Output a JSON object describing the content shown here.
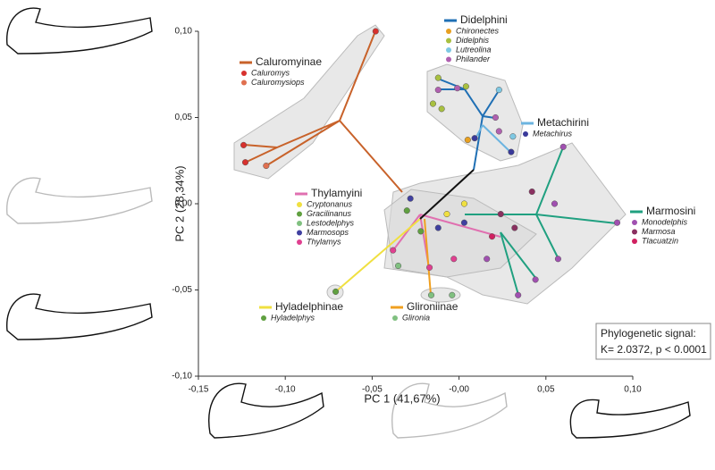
{
  "chart_data": {
    "type": "scatter",
    "x_label": "PC 1 (41,67%)",
    "y_label": "PC 2 (28,34%)",
    "xlim": [
      -0.15,
      0.1
    ],
    "ylim": [
      -0.1,
      0.1
    ],
    "xticks": [
      {
        "value": -0.15,
        "label": "-0,15"
      },
      {
        "value": -0.1,
        "label": "-0,10"
      },
      {
        "value": -0.05,
        "label": "-0,05"
      },
      {
        "value": 0,
        "label": "-0,00"
      },
      {
        "value": 0.05,
        "label": "0,05"
      },
      {
        "value": 0.1,
        "label": "0,10"
      }
    ],
    "yticks": [
      {
        "value": 0.1,
        "label": "0,10"
      },
      {
        "value": 0.05,
        "label": "0,05"
      },
      {
        "value": 0,
        "label": "0,00"
      },
      {
        "value": -0.05,
        "label": "-0,05"
      },
      {
        "value": -0.1,
        "label": "-0,10"
      }
    ],
    "annotation": [
      "Phylogenetic signal:",
      "K= 2.0372, p < 0.0001"
    ],
    "groups": [
      {
        "name": "Caluromyinae",
        "color": "#c8622a",
        "series": [
          {
            "name": "Caluromys",
            "color": "#d7312e",
            "x": [
              -0.124,
              -0.123,
              -0.048
            ],
            "y": [
              0.034,
              0.024,
              0.1
            ]
          },
          {
            "name": "Caluromysiops",
            "color": "#e07050",
            "x": [
              -0.111
            ],
            "y": [
              0.022
            ]
          }
        ]
      },
      {
        "name": "Didelphini",
        "color": "#1f6fb4",
        "series": [
          {
            "name": "Chironectes",
            "color": "#e8a020",
            "x": [
              0.005
            ],
            "y": [
              0.037
            ]
          },
          {
            "name": "Didelphis",
            "color": "#a8c040",
            "x": [
              -0.012,
              -0.015,
              -0.01,
              0.004
            ],
            "y": [
              0.073,
              0.058,
              0.055,
              0.068
            ]
          },
          {
            "name": "Lutreolina",
            "color": "#7ec8e3",
            "x": [
              0.023,
              0.031
            ],
            "y": [
              0.066,
              0.039
            ]
          },
          {
            "name": "Philander",
            "color": "#b060b0",
            "x": [
              -0.012,
              -0.001,
              0.023,
              0.021
            ],
            "y": [
              0.066,
              0.067,
              0.042,
              0.05
            ]
          }
        ]
      },
      {
        "name": "Metachirini",
        "color": "#6cb4e0",
        "series": [
          {
            "name": "Metachirus",
            "color": "#3a3a9a",
            "x": [
              0.03,
              0.009
            ],
            "y": [
              0.03,
              0.038
            ]
          }
        ]
      },
      {
        "name": "Thylamyini",
        "color": "#e070b0",
        "series": [
          {
            "name": "Cryptonanus",
            "color": "#f0e040",
            "x": [
              0.003,
              -0.007
            ],
            "y": [
              0.0,
              -0.006
            ]
          },
          {
            "name": "Gracilinanus",
            "color": "#60a040",
            "x": [
              -0.03,
              -0.022
            ],
            "y": [
              -0.004,
              -0.016
            ]
          },
          {
            "name": "Lestodelphys",
            "color": "#80c080",
            "x": [
              -0.035
            ],
            "y": [
              -0.036
            ]
          },
          {
            "name": "Marmosops",
            "color": "#4040a0",
            "x": [
              -0.012,
              0.003,
              -0.028
            ],
            "y": [
              -0.014,
              -0.011,
              0.003
            ]
          },
          {
            "name": "Thylamys",
            "color": "#e04090",
            "x": [
              -0.038,
              -0.017,
              -0.003
            ],
            "y": [
              -0.027,
              -0.037,
              -0.032
            ]
          }
        ]
      },
      {
        "name": "Marmosini",
        "color": "#20a080",
        "series": [
          {
            "name": "Monodelphis",
            "color": "#a050b0",
            "x": [
              0.06,
              0.091,
              0.057,
              0.044,
              0.034,
              0.055,
              0.016
            ],
            "y": [
              0.033,
              -0.011,
              -0.032,
              -0.044,
              -0.053,
              0.0,
              -0.032
            ]
          },
          {
            "name": "Marmosa",
            "color": "#8a3060",
            "x": [
              0.032,
              0.024,
              0.042
            ],
            "y": [
              -0.014,
              -0.006,
              0.007
            ]
          },
          {
            "name": "Tlacuatzin",
            "color": "#d02060",
            "x": [
              0.019
            ],
            "y": [
              -0.019
            ]
          }
        ]
      },
      {
        "name": "Hyladelphinae",
        "color": "#f0e040",
        "series": [
          {
            "name": "Hyladelphys",
            "color": "#60a040",
            "x": [
              -0.071
            ],
            "y": [
              -0.051
            ]
          }
        ]
      },
      {
        "name": "Glironiinae",
        "color": "#f0a020",
        "series": [
          {
            "name": "Glironia",
            "color": "#80c080",
            "x": [
              -0.016,
              -0.004
            ],
            "y": [
              -0.053,
              -0.053
            ]
          }
        ]
      }
    ]
  }
}
